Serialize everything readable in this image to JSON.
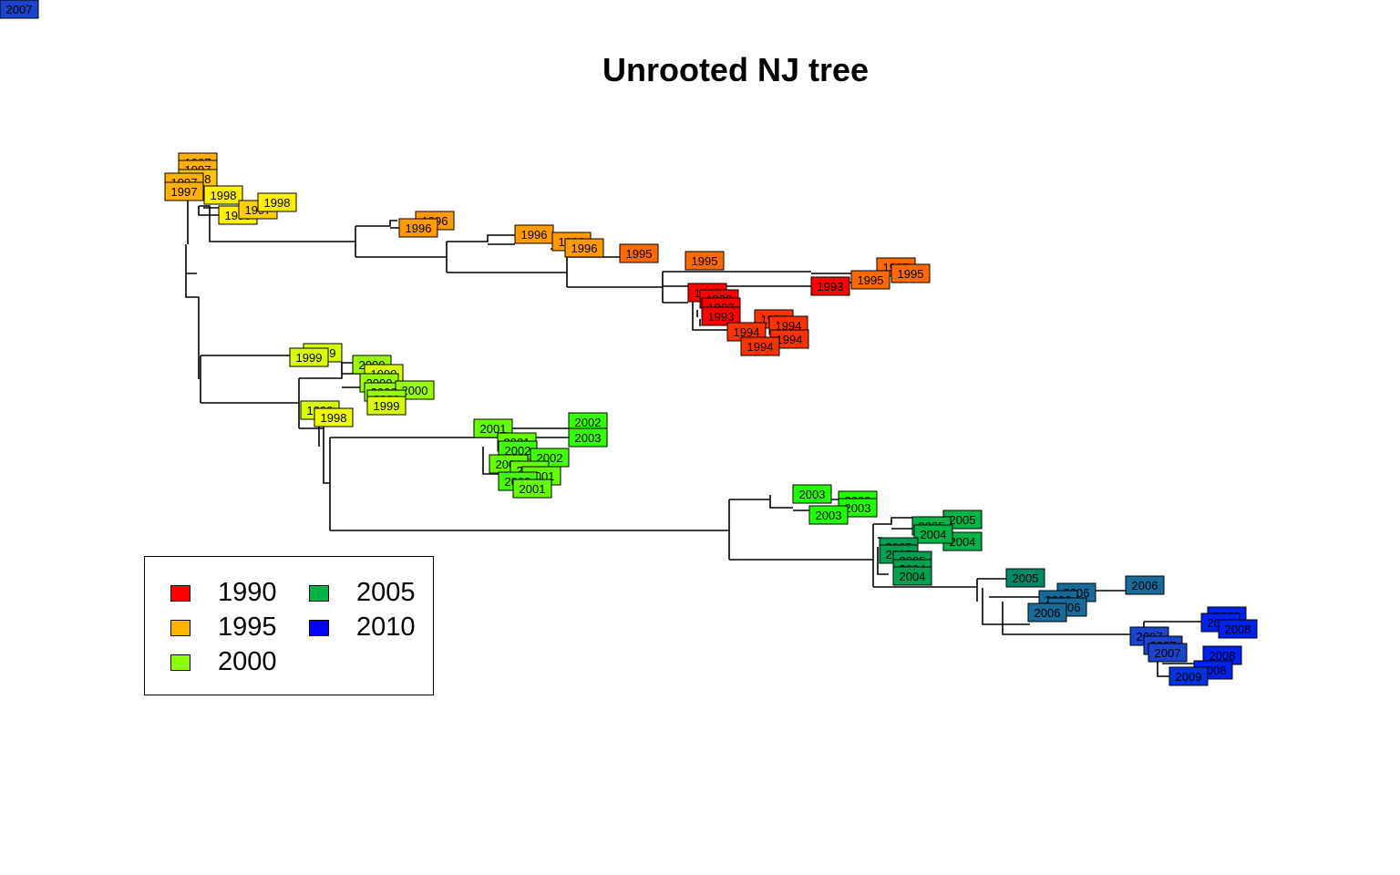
{
  "title": "Unrooted NJ tree",
  "legend": {
    "items": [
      {
        "label": "1990",
        "color": "#FF0000"
      },
      {
        "label": "1995",
        "color": "#FFB300"
      },
      {
        "label": "2000",
        "color": "#8CFF00"
      },
      {
        "label": "2005",
        "color": "#00B347"
      },
      {
        "label": "2010",
        "color": "#0000FF"
      }
    ]
  },
  "tips": [
    {
      "year": "1997",
      "color": "#FFB000"
    },
    {
      "year": "1997",
      "color": "#FFB000"
    },
    {
      "year": "1998",
      "color": "#FFC400"
    },
    {
      "year": "1997",
      "color": "#FFB000"
    },
    {
      "year": "1997",
      "color": "#FFB000"
    },
    {
      "year": "1998",
      "color": "#FFF000"
    },
    {
      "year": "1998",
      "color": "#FFF000"
    },
    {
      "year": "1997",
      "color": "#FFD000"
    },
    {
      "year": "1998",
      "color": "#FFF000"
    },
    {
      "year": "1996",
      "color": "#FF9A00"
    },
    {
      "year": "1996",
      "color": "#FF9A00"
    },
    {
      "year": "1996",
      "color": "#FF9A00"
    },
    {
      "year": "1996",
      "color": "#FF9A00"
    },
    {
      "year": "1996",
      "color": "#FF9A00"
    },
    {
      "year": "1995",
      "color": "#FF6A00"
    },
    {
      "year": "1995",
      "color": "#FF6A00"
    },
    {
      "year": "1995",
      "color": "#FF6A00"
    },
    {
      "year": "1995",
      "color": "#FF6A00"
    },
    {
      "year": "1995",
      "color": "#FF6A00"
    },
    {
      "year": "1993",
      "color": "#FF0000"
    },
    {
      "year": "1993",
      "color": "#FF0000"
    },
    {
      "year": "1993",
      "color": "#FF0000"
    },
    {
      "year": "1993",
      "color": "#FF0000"
    },
    {
      "year": "1993",
      "color": "#FF0000"
    },
    {
      "year": "1994",
      "color": "#FF3300"
    },
    {
      "year": "1994",
      "color": "#FF3300"
    },
    {
      "year": "1994",
      "color": "#FF3300"
    },
    {
      "year": "1994",
      "color": "#FF3300"
    },
    {
      "year": "1994",
      "color": "#FF3300"
    },
    {
      "year": "1999",
      "color": "#D9FF00"
    },
    {
      "year": "1999",
      "color": "#D9FF00"
    },
    {
      "year": "2000",
      "color": "#99FF00"
    },
    {
      "year": "1999",
      "color": "#D9FF00"
    },
    {
      "year": "2000",
      "color": "#99FF00"
    },
    {
      "year": "2000",
      "color": "#99FF00"
    },
    {
      "year": "2000",
      "color": "#99FF00"
    },
    {
      "year": "2000",
      "color": "#99FF00"
    },
    {
      "year": "1999",
      "color": "#D9FF00"
    },
    {
      "year": "1999",
      "color": "#D9FF00"
    },
    {
      "year": "1998",
      "color": "#F0FF00"
    },
    {
      "year": "2001",
      "color": "#66FF00"
    },
    {
      "year": "2002",
      "color": "#33FF00"
    },
    {
      "year": "2003",
      "color": "#33FF00"
    },
    {
      "year": "2001",
      "color": "#66FF00"
    },
    {
      "year": "2002",
      "color": "#44FF00"
    },
    {
      "year": "2002",
      "color": "#44FF00"
    },
    {
      "year": "2001",
      "color": "#66FF00"
    },
    {
      "year": "2001",
      "color": "#66FF00"
    },
    {
      "year": "2001",
      "color": "#66FF00"
    },
    {
      "year": "2003",
      "color": "#44FF00"
    },
    {
      "year": "2001",
      "color": "#66FF00"
    },
    {
      "year": "2003",
      "color": "#22FF00"
    },
    {
      "year": "2003",
      "color": "#22FF00"
    },
    {
      "year": "2003",
      "color": "#22FF00"
    },
    {
      "year": "2003",
      "color": "#22FF00"
    },
    {
      "year": "2004",
      "color": "#00B347"
    },
    {
      "year": "2005",
      "color": "#00B347"
    },
    {
      "year": "2005",
      "color": "#00B347"
    },
    {
      "year": "2004",
      "color": "#00B347"
    },
    {
      "year": "2005",
      "color": "#00A050"
    },
    {
      "year": "2007",
      "color": "#00A050"
    },
    {
      "year": "2005",
      "color": "#00A050"
    },
    {
      "year": "2004",
      "color": "#00A050"
    },
    {
      "year": "2004",
      "color": "#00A050"
    },
    {
      "year": "2005",
      "color": "#008866"
    },
    {
      "year": "2006",
      "color": "#1A6A99"
    },
    {
      "year": "2006",
      "color": "#1A6A99"
    },
    {
      "year": "2006",
      "color": "#1A6A99"
    },
    {
      "year": "2006",
      "color": "#1A6A99"
    },
    {
      "year": "2006",
      "color": "#1A6A99"
    },
    {
      "year": "2008",
      "color": "#0022EE"
    },
    {
      "year": "2008",
      "color": "#0022EE"
    },
    {
      "year": "2008",
      "color": "#0022EE"
    },
    {
      "year": "2007",
      "color": "#1A44CC"
    },
    {
      "year": "2007",
      "color": "#1A44CC"
    },
    {
      "year": "2007",
      "color": "#1A44CC"
    },
    {
      "year": "2008",
      "color": "#0022EE"
    },
    {
      "year": "2008",
      "color": "#0022EE"
    },
    {
      "year": "2009",
      "color": "#0033DD"
    },
    {
      "year": "2007",
      "color": "#1A44CC"
    }
  ]
}
